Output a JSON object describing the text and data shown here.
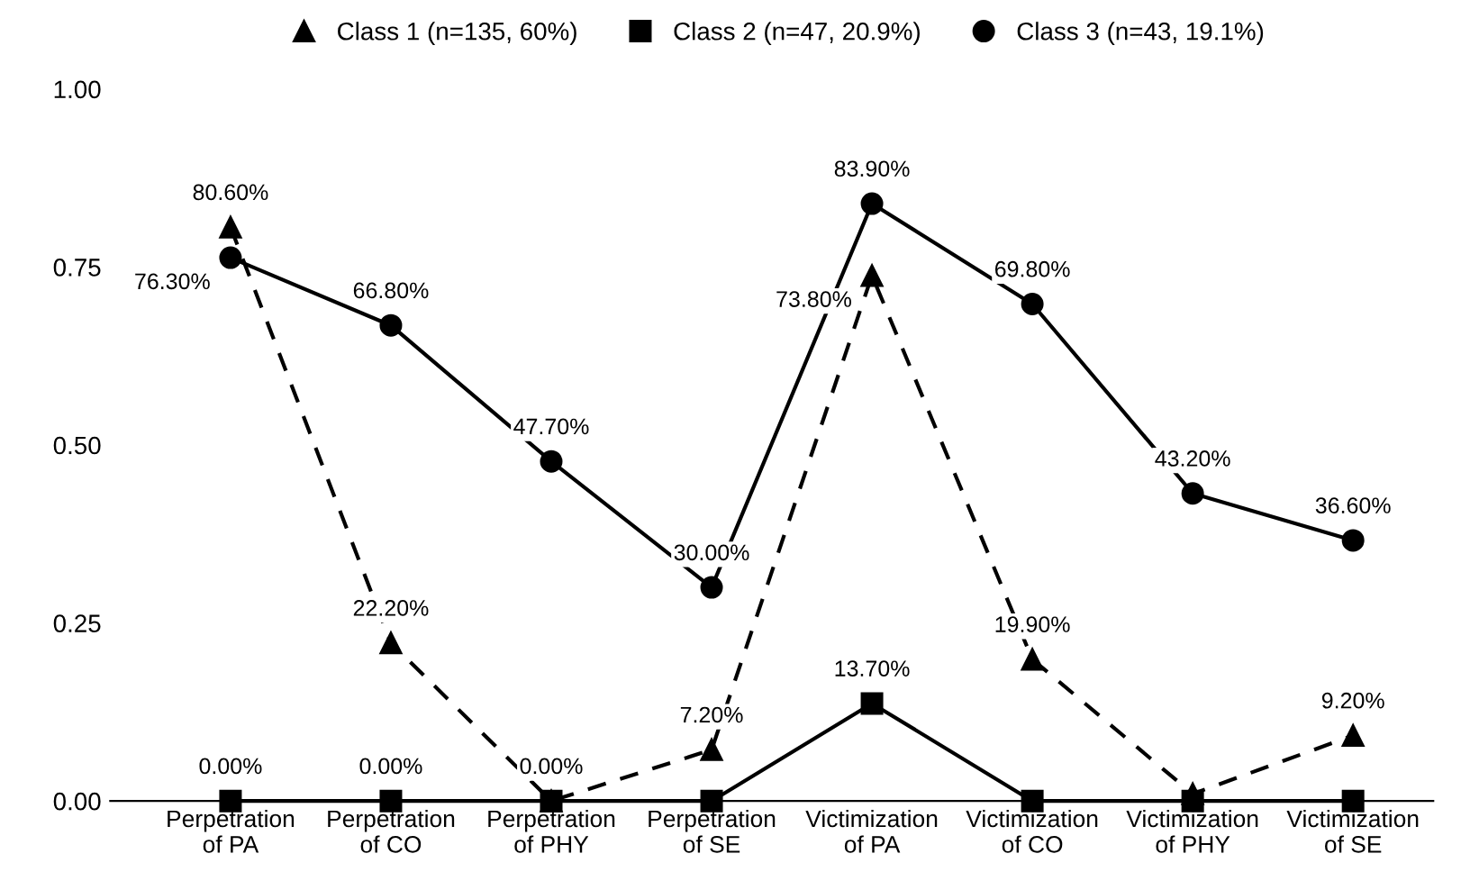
{
  "chart_data": {
    "type": "line",
    "categories": [
      "Perpetration\nof PA",
      "Perpetration\nof CO",
      "Perpetration\nof PHY",
      "Perpetration\nof SE",
      "Victimization\nof PA",
      "Victimization\nof CO",
      "Victimization\nof PHY",
      "Victimization\nof SE"
    ],
    "series": [
      {
        "name": "Class 1 (n=135, 60%)",
        "color": "#000000",
        "marker": "triangle",
        "line_style": "dashed",
        "values": [
          0.806,
          0.222,
          0.0,
          0.072,
          0.738,
          0.199,
          0.01,
          0.092
        ],
        "value_labels": [
          "80.60%",
          "22.20%",
          "0.00%",
          "7.20%",
          "73.80%",
          "19.90%",
          null,
          "9.20%"
        ]
      },
      {
        "name": "Class 2 (n=47, 20.9%)",
        "color": "#000000",
        "marker": "square",
        "line_style": "solid",
        "values": [
          0.0,
          0.0,
          0.0,
          0.0,
          0.137,
          0.0,
          0.0,
          0.0
        ],
        "value_labels": [
          "0.00%",
          "0.00%",
          null,
          null,
          "13.70%",
          null,
          null,
          null
        ]
      },
      {
        "name": "Class 3 (n=43, 19.1%)",
        "color": "#000000",
        "marker": "circle",
        "line_style": "solid",
        "values": [
          0.763,
          0.668,
          0.477,
          0.3,
          0.839,
          0.698,
          0.432,
          0.366
        ],
        "value_labels": [
          "76.30%",
          "66.80%",
          "47.70%",
          "30.00%",
          "83.90%",
          "69.80%",
          "43.20%",
          "36.60%"
        ]
      }
    ],
    "ylim": [
      0,
      1.0
    ],
    "yticks": [
      {
        "value": 0,
        "label": "0.00"
      },
      {
        "value": 0.25,
        "label": "0.25"
      },
      {
        "value": 0.5,
        "label": "0.50"
      },
      {
        "value": 0.75,
        "label": "0.75"
      },
      {
        "value": 1.0,
        "label": "1.00"
      }
    ],
    "grid": false,
    "legend": "top"
  }
}
